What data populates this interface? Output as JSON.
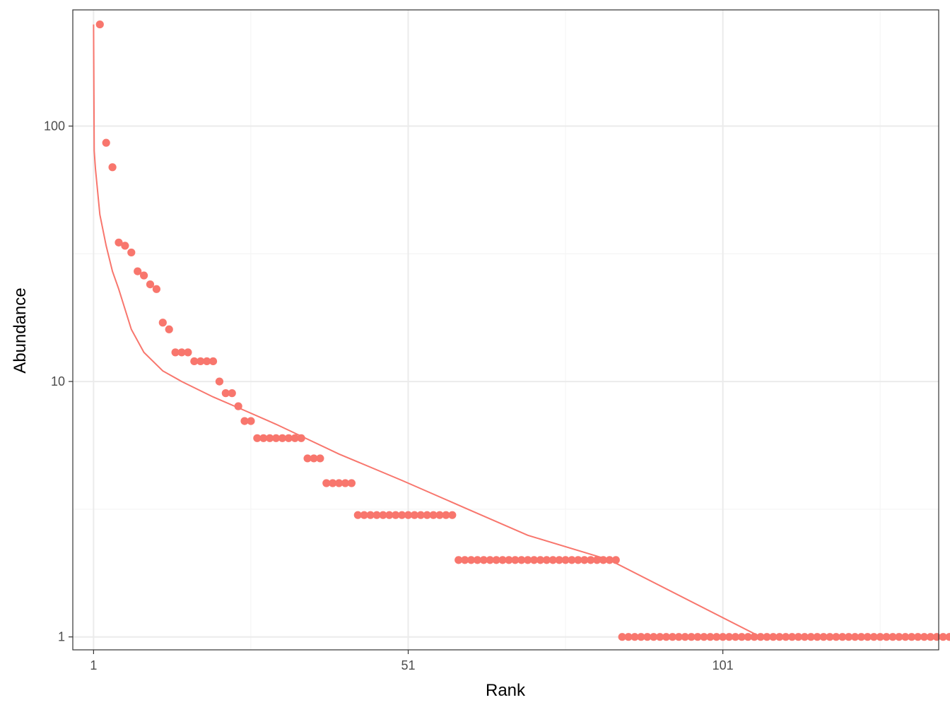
{
  "chart_data": {
    "type": "scatter",
    "title": "",
    "xlabel": "Rank",
    "ylabel": "Abundance",
    "x_scale": "linear",
    "y_scale": "log10",
    "xlim": [
      -2.3,
      135.3
    ],
    "ylim": [
      0.89,
      285
    ],
    "x_ticks": [
      1,
      51,
      101
    ],
    "y_ticks": [
      1,
      10,
      100
    ],
    "grid": true,
    "legend": "none",
    "colors": {
      "points": "#F8766D",
      "line": "#F8766D",
      "panel_border": "#333333",
      "grid_major": "#EBEBEB",
      "grid_minor": "#F5F5F5"
    },
    "points": {
      "name": "observed",
      "ranks_from": 2,
      "values": [
        250,
        86,
        69,
        35,
        34,
        32,
        27,
        26,
        24,
        23,
        17,
        16,
        13,
        13,
        13,
        12,
        12,
        12,
        12,
        10,
        9,
        9,
        8,
        7,
        7,
        6,
        6,
        6,
        6,
        6,
        6,
        6,
        6,
        5,
        5,
        5,
        4,
        4,
        4,
        4,
        4,
        3,
        3,
        3,
        3,
        3,
        3,
        3,
        3,
        3,
        3,
        3,
        3,
        3,
        3,
        3,
        3,
        2,
        2,
        2,
        2,
        2,
        2,
        2,
        2,
        2,
        2,
        2,
        2,
        2,
        2,
        2,
        2,
        2,
        2,
        2,
        2,
        2,
        2,
        2,
        2,
        2,
        2,
        1,
        1,
        1,
        1,
        1,
        1,
        1,
        1,
        1,
        1,
        1,
        1,
        1,
        1,
        1,
        1,
        1,
        1,
        1,
        1,
        1,
        1,
        1,
        1,
        1,
        1,
        1,
        1,
        1,
        1,
        1,
        1,
        1,
        1,
        1,
        1,
        1,
        1,
        1,
        1,
        1,
        1,
        1,
        1,
        1,
        1,
        1,
        1,
        1,
        1,
        1,
        1,
        1,
        1
      ]
    },
    "line": {
      "name": "fitted",
      "x": [
        1,
        1.1,
        1.3,
        2,
        3,
        4,
        5,
        7,
        9,
        12,
        15,
        20,
        25,
        30,
        40,
        50,
        60,
        70,
        83,
        107
      ],
      "y": [
        250,
        80,
        68,
        45,
        34,
        27,
        23,
        16,
        13,
        11,
        10,
        8.7,
        7.7,
        6.8,
        5.2,
        4.1,
        3.2,
        2.5,
        2.0,
        1.0
      ]
    }
  }
}
